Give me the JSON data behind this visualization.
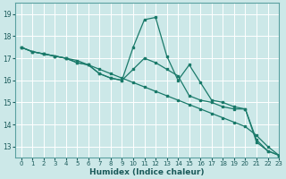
{
  "title": "",
  "xlabel": "Humidex (Indice chaleur)",
  "ylabel": "",
  "background_color": "#cce8e8",
  "grid_color": "#b0d8d8",
  "line_color": "#1a7a6a",
  "xlim": [
    -0.5,
    23
  ],
  "ylim": [
    12.5,
    19.5
  ],
  "yticks": [
    13,
    14,
    15,
    16,
    17,
    18,
    19
  ],
  "xticks": [
    0,
    1,
    2,
    3,
    4,
    5,
    6,
    7,
    8,
    9,
    10,
    11,
    12,
    13,
    14,
    15,
    16,
    17,
    18,
    19,
    20,
    21,
    22,
    23
  ],
  "series1_x": [
    0,
    1,
    2,
    3,
    4,
    5,
    6,
    7,
    8,
    9,
    10,
    11,
    12,
    13,
    14,
    15,
    16,
    17,
    18,
    19,
    20,
    21,
    22,
    23
  ],
  "series1_y": [
    17.5,
    17.3,
    17.2,
    17.1,
    17.0,
    16.9,
    16.7,
    16.5,
    16.3,
    16.1,
    15.9,
    15.7,
    15.5,
    15.3,
    15.1,
    14.9,
    14.7,
    14.5,
    14.3,
    14.1,
    13.9,
    13.5,
    13.0,
    12.6
  ],
  "series2_x": [
    0,
    1,
    2,
    3,
    4,
    5,
    6,
    7,
    8,
    9,
    10,
    11,
    12,
    13,
    14,
    15,
    16,
    17,
    18,
    19,
    20,
    21,
    22,
    23
  ],
  "series2_y": [
    17.5,
    17.3,
    17.2,
    17.1,
    17.0,
    16.8,
    16.7,
    16.3,
    16.1,
    16.0,
    16.5,
    17.0,
    16.8,
    16.5,
    16.2,
    15.3,
    15.1,
    15.0,
    14.8,
    14.7,
    14.7,
    13.3,
    12.8,
    12.6
  ],
  "series3_x": [
    0,
    1,
    2,
    3,
    4,
    5,
    6,
    7,
    8,
    9,
    10,
    11,
    12,
    13,
    14,
    15,
    16,
    17,
    18,
    19,
    20,
    21,
    22,
    23
  ],
  "series3_y": [
    17.5,
    17.3,
    17.2,
    17.1,
    17.0,
    16.8,
    16.7,
    16.3,
    16.1,
    16.0,
    17.5,
    18.75,
    18.85,
    17.1,
    16.0,
    16.7,
    15.9,
    15.1,
    15.0,
    14.8,
    14.7,
    13.2,
    12.8,
    12.6
  ]
}
